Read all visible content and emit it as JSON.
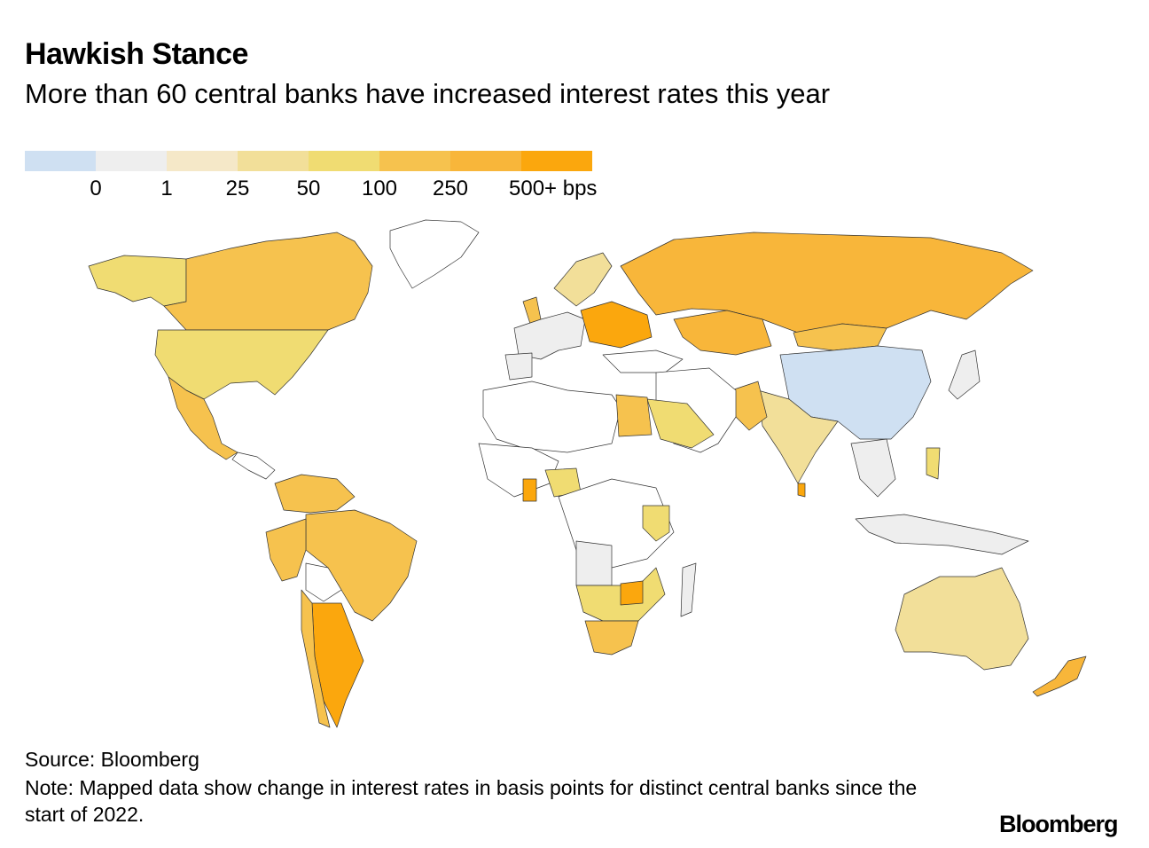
{
  "title": "Hawkish Stance",
  "subtitle": "More than 60 central banks have increased interest rates this year",
  "legend": {
    "colors": [
      "#cfe0f2",
      "#eeeeee",
      "#f5e8c8",
      "#f2df99",
      "#f0dc72",
      "#f6c24e",
      "#f8b63a",
      "#fba70d"
    ],
    "labels": [
      "0",
      "1",
      "25",
      "50",
      "100",
      "250",
      "500+ bps"
    ]
  },
  "source": "Source: Bloomberg",
  "note": "Note: Mapped data show change in interest rates in basis points for distinct central banks since the start of 2022.",
  "brand": "Bloomberg",
  "colors": {
    "no_data": "#ffffff",
    "zero": "#cfe0f2",
    "one": "#eeeeee",
    "bps25": "#f5e8c8",
    "bps50": "#f2df99",
    "bps100": "#f0dc72",
    "bps250": "#f6c24e",
    "bps250b": "#f8b63a",
    "bps500": "#fba70d"
  }
}
